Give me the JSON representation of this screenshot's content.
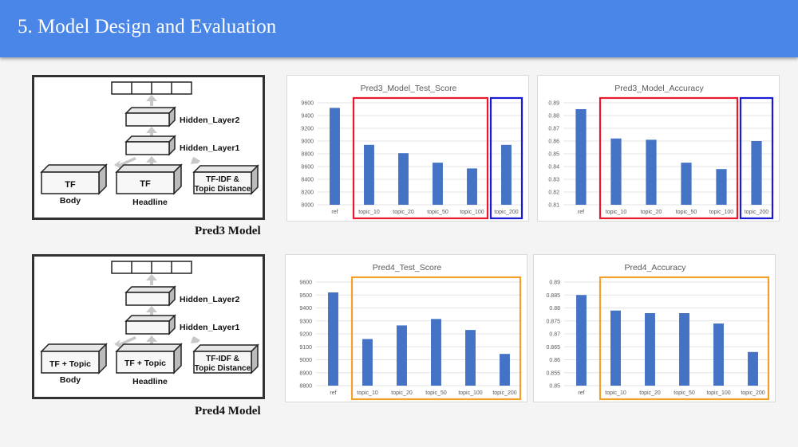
{
  "slide": {
    "title": "5. Model Design and Evaluation"
  },
  "colors": {
    "header": "#4a86e8",
    "bar": "#4472c4",
    "red_box": "#e8192c",
    "blue_box": "#1a1ad0",
    "orange_box": "#f4a12c"
  },
  "pred3": {
    "caption": "Pred3 Model",
    "layers": {
      "hidden2": "Hidden_Layer2",
      "hidden1": "Hidden_Layer1"
    },
    "inputs": [
      {
        "box": "TF",
        "label": "Body"
      },
      {
        "box": "TF",
        "label": "Headline"
      },
      {
        "box_line1": "TF-IDF &",
        "box_line2": "Topic Distance"
      }
    ]
  },
  "pred4": {
    "caption": "Pred4 Model",
    "layers": {
      "hidden2": "Hidden_Layer2",
      "hidden1": "Hidden_Layer1"
    },
    "inputs": [
      {
        "box": "TF + Topic",
        "label": "Body"
      },
      {
        "box": "TF + Topic",
        "label": "Headline"
      },
      {
        "box_line1": "TF-IDF &",
        "box_line2": "Topic Distance"
      }
    ]
  },
  "chart_data": [
    {
      "type": "bar",
      "title": "Pred3_Model_Test_Score",
      "categories": [
        "ref",
        "topic_10",
        "topic_20",
        "topic_50",
        "topic_100",
        "topic_200"
      ],
      "values": [
        9520,
        8940,
        8810,
        8660,
        8570,
        8940
      ],
      "ylim": [
        8000,
        9600
      ],
      "yticks": [
        "8000",
        "8200",
        "8400",
        "8600",
        "8800",
        "9000",
        "9200",
        "9400",
        "9600"
      ],
      "highlights": [
        {
          "color": "red",
          "from": 1,
          "to": 4
        },
        {
          "color": "blue",
          "from": 5,
          "to": 5
        }
      ]
    },
    {
      "type": "bar",
      "title": "Pred3_Model_Accuracy",
      "categories": [
        "ref",
        "topic_10",
        "topic_20",
        "topic_50",
        "topic_100",
        "topic_200"
      ],
      "values": [
        0.885,
        0.862,
        0.861,
        0.843,
        0.838,
        0.86
      ],
      "ylim": [
        0.81,
        0.89
      ],
      "yticks": [
        "0.81",
        "0.82",
        "0.83",
        "0.84",
        "0.85",
        "0.86",
        "0.87",
        "0.88",
        "0.89"
      ],
      "highlights": [
        {
          "color": "red",
          "from": 1,
          "to": 4
        },
        {
          "color": "blue",
          "from": 5,
          "to": 5
        }
      ]
    },
    {
      "type": "bar",
      "title": "Pred4_Test_Score",
      "categories": [
        "ref",
        "topic_10",
        "topic_20",
        "topic_50",
        "topic_100",
        "topic_200"
      ],
      "values": [
        9520,
        9160,
        9265,
        9315,
        9230,
        9045
      ],
      "ylim": [
        8800,
        9600
      ],
      "yticks": [
        "8800",
        "8900",
        "9000",
        "9100",
        "9200",
        "9300",
        "9400",
        "9500",
        "9600"
      ],
      "highlights": [
        {
          "color": "orange",
          "from": 1,
          "to": 5
        }
      ]
    },
    {
      "type": "bar",
      "title": "Pred4_Accuracy",
      "categories": [
        "ref",
        "topic_10",
        "topic_20",
        "topic_50",
        "topic_100",
        "topic_200"
      ],
      "values": [
        0.885,
        0.879,
        0.878,
        0.878,
        0.874,
        0.863
      ],
      "ylim": [
        0.85,
        0.89
      ],
      "yticks": [
        "0.85",
        "0.855",
        "0.86",
        "0.865",
        "0.87",
        "0.875",
        "0.88",
        "0.885",
        "0.89"
      ],
      "highlights": [
        {
          "color": "orange",
          "from": 1,
          "to": 5
        }
      ]
    }
  ]
}
